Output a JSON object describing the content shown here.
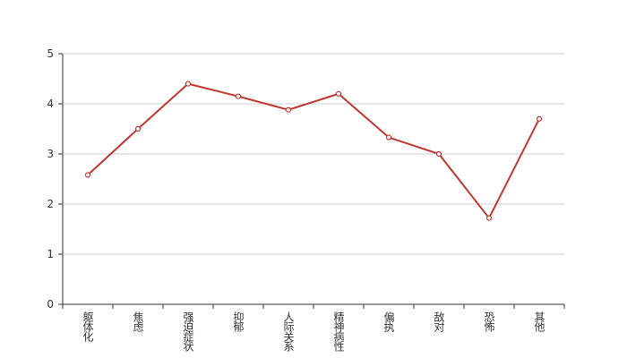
{
  "chart_data": {
    "type": "line",
    "categories": [
      "躯体化",
      "焦虑",
      "强迫症状",
      "抑郁",
      "人际关系",
      "精神病性",
      "偏执",
      "敌对",
      "恐怖",
      "其他"
    ],
    "values": [
      2.58,
      3.5,
      4.4,
      4.15,
      3.88,
      4.2,
      3.33,
      3.0,
      1.72,
      3.7
    ],
    "color": "#c23531",
    "ylim": [
      0,
      5
    ],
    "yticks": [
      0,
      1,
      2,
      3,
      4,
      5
    ],
    "grid": true
  }
}
